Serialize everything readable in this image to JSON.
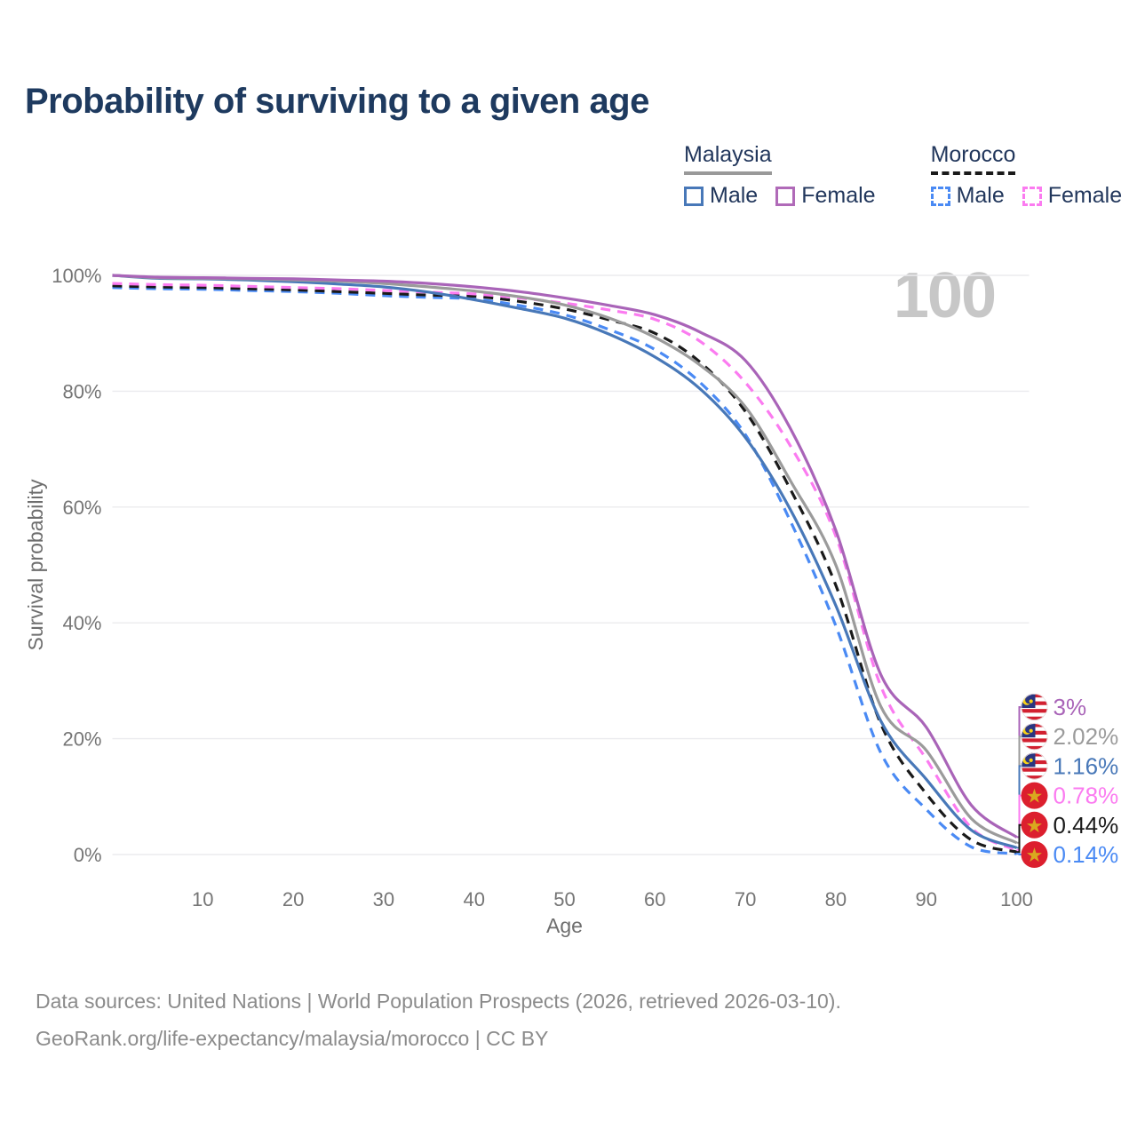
{
  "title": "Probability of surviving to a given age",
  "watermark": "100",
  "legend": {
    "groups": [
      {
        "label": "Malaysia",
        "underline_color": "#999999",
        "underline_style": "solid",
        "items": [
          {
            "label": "Male",
            "color": "#4878b8",
            "style": "solid"
          },
          {
            "label": "Female",
            "color": "#b06ab8",
            "style": "solid"
          }
        ]
      },
      {
        "label": "Morocco",
        "underline_color": "#1a1a1a",
        "underline_style": "dashed",
        "items": [
          {
            "label": "Male",
            "color": "#4a8af4",
            "style": "dashed"
          },
          {
            "label": "Female",
            "color": "#fb7bf0",
            "style": "dashed"
          }
        ]
      }
    ]
  },
  "chart_data": {
    "type": "line",
    "title": "Probability of surviving to a given age",
    "xlabel": "Age",
    "ylabel": "Survival probability",
    "xlim": [
      0,
      100
    ],
    "ylim": [
      0,
      100
    ],
    "grid": "horizontal",
    "x_ticks": [
      10,
      20,
      30,
      40,
      50,
      60,
      70,
      80,
      90,
      100
    ],
    "y_ticks": [
      {
        "label": "0%",
        "value": 0
      },
      {
        "label": "20%",
        "value": 20
      },
      {
        "label": "40%",
        "value": 40
      },
      {
        "label": "60%",
        "value": 60
      },
      {
        "label": "80%",
        "value": 80
      },
      {
        "label": "100%",
        "value": 100
      }
    ],
    "ages": [
      0,
      5,
      10,
      15,
      20,
      25,
      30,
      35,
      40,
      45,
      50,
      55,
      60,
      65,
      70,
      75,
      80,
      85,
      90,
      95,
      100
    ],
    "series": [
      {
        "name": "Malaysia Female",
        "country": "Malaysia",
        "sex": "Female",
        "flag": "malaysia",
        "color": "#a964b8",
        "dash": "solid",
        "end_label": "3%",
        "end_value": 3,
        "values": [
          100,
          99.7,
          99.6,
          99.5,
          99.4,
          99.2,
          99.0,
          98.6,
          98.0,
          97.2,
          96.1,
          94.8,
          93.2,
          90.2,
          85.3,
          73.5,
          56.0,
          31.0,
          22.0,
          8.5,
          3.0
        ]
      },
      {
        "name": "Malaysia (both sexes)",
        "country": "Malaysia",
        "sex": "Both",
        "flag": "malaysia",
        "color": "#9b9b9b",
        "dash": "solid",
        "end_label": "2.02%",
        "end_value": 2.02,
        "values": [
          100,
          99.6,
          99.5,
          99.4,
          99.2,
          99.0,
          98.6,
          98.0,
          97.3,
          96.3,
          94.9,
          92.6,
          89.3,
          84.5,
          77.3,
          64.5,
          50.0,
          25.5,
          18.0,
          6.2,
          2.02
        ]
      },
      {
        "name": "Malaysia Male",
        "country": "Malaysia",
        "sex": "Male",
        "flag": "malaysia",
        "color": "#4878b8",
        "dash": "solid",
        "end_label": "1.16%",
        "end_value": 1.16,
        "values": [
          100,
          99.5,
          99.4,
          99.2,
          98.9,
          98.5,
          98.0,
          97.1,
          95.8,
          94.3,
          92.6,
          89.8,
          85.9,
          80.4,
          72.0,
          59.5,
          43.0,
          23.0,
          13.0,
          4.2,
          1.16
        ]
      },
      {
        "name": "Morocco Female",
        "country": "Morocco",
        "sex": "Female",
        "flag": "morocco",
        "color": "#fb7bf0",
        "dash": "dashed",
        "end_label": "0.78%",
        "end_value": 0.78,
        "values": [
          98.6,
          98.4,
          98.3,
          98.1,
          97.9,
          97.7,
          97.4,
          97.1,
          96.8,
          96.1,
          95.2,
          94.0,
          92.4,
          88.6,
          81.5,
          70.5,
          55.0,
          29.0,
          16.5,
          4.6,
          0.78
        ]
      },
      {
        "name": "Morocco (both sexes)",
        "country": "Morocco",
        "sex": "Both",
        "flag": "morocco",
        "color": "#1a1a1a",
        "dash": "dashed",
        "end_label": "0.44%",
        "end_value": 0.44,
        "values": [
          98.2,
          98.0,
          97.9,
          97.7,
          97.5,
          97.2,
          96.9,
          96.6,
          96.4,
          95.5,
          94.2,
          92.3,
          90.0,
          85.0,
          76.5,
          63.0,
          46.5,
          22.5,
          10.5,
          2.5,
          0.44
        ]
      },
      {
        "name": "Morocco Male",
        "country": "Morocco",
        "sex": "Male",
        "flag": "morocco",
        "color": "#4a8af4",
        "dash": "dashed",
        "end_label": "0.14%",
        "end_value": 0.14,
        "values": [
          97.9,
          97.7,
          97.6,
          97.4,
          97.2,
          96.9,
          96.5,
          96.2,
          95.9,
          94.8,
          93.2,
          90.6,
          87.2,
          81.5,
          72.5,
          57.5,
          39.5,
          17.5,
          7.8,
          1.3,
          0.14
        ]
      }
    ]
  },
  "footer": {
    "line1": "Data sources: United Nations | World Population Prospects (2026, retrieved 2026-03-10).",
    "line2": "GeoRank.org/life-expectancy/malaysia/morocco | CC BY"
  }
}
